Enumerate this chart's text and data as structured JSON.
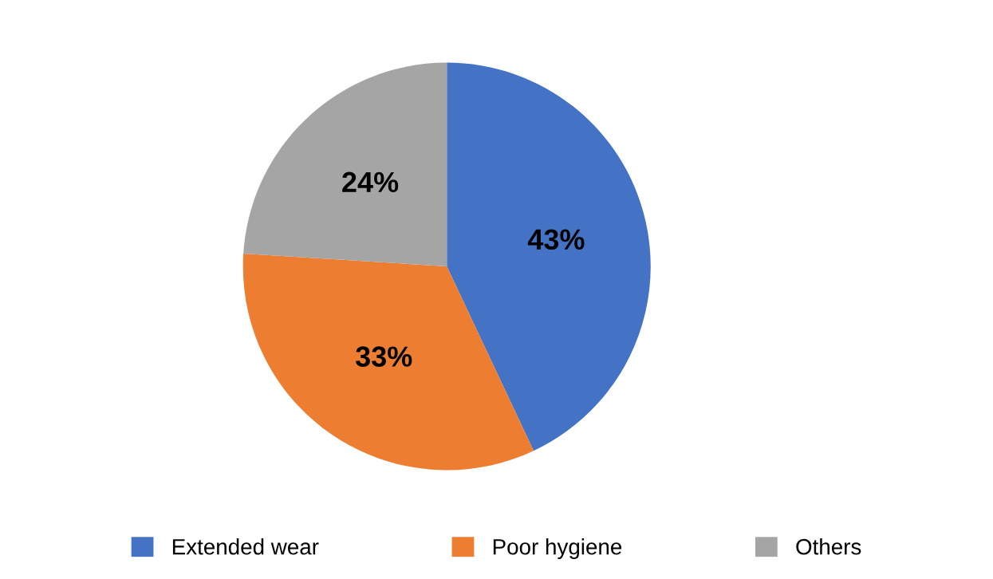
{
  "chart_data": {
    "type": "pie",
    "categories": [
      "Extended wear",
      "Poor hygiene",
      "Others"
    ],
    "values": [
      43,
      33,
      24
    ],
    "colors": [
      "#4472c4",
      "#ed7d31",
      "#a5a5a5"
    ],
    "value_labels": [
      "43%",
      "33%",
      "24%"
    ],
    "legend": "bottom"
  }
}
